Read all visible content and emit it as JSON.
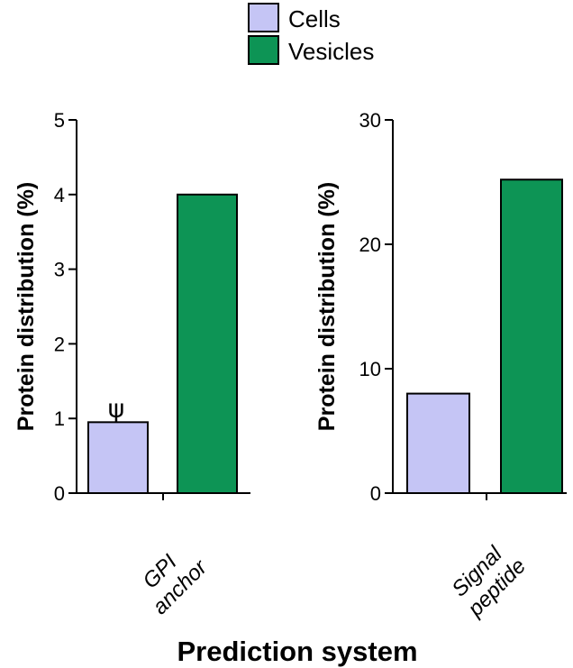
{
  "legend": [
    {
      "label": "Cells",
      "color": "#c5c5f5"
    },
    {
      "label": "Vesicles",
      "color": "#0d9455"
    }
  ],
  "xlabel": "Prediction system",
  "chart_data": [
    {
      "type": "bar",
      "categories": [
        "GPI anchor"
      ],
      "category_lines": [
        [
          "GPI",
          "anchor"
        ]
      ],
      "series": [
        {
          "name": "Cells",
          "values": [
            0.95
          ]
        },
        {
          "name": "Vesicles",
          "values": [
            4.0
          ]
        }
      ],
      "ylabel": "Protein distribution (%)",
      "ylim": [
        0,
        5
      ],
      "yticks": [
        0,
        1,
        2,
        3,
        4,
        5
      ],
      "annotations": [
        {
          "text": "ψ",
          "series": "Cells",
          "category": "GPI anchor"
        }
      ]
    },
    {
      "type": "bar",
      "categories": [
        "Signal peptide"
      ],
      "category_lines": [
        [
          "Signal",
          "peptide"
        ]
      ],
      "series": [
        {
          "name": "Cells",
          "values": [
            8.0
          ]
        },
        {
          "name": "Vesicles",
          "values": [
            25.2
          ]
        }
      ],
      "ylabel": "Protein distribution (%)",
      "ylim": [
        0,
        30
      ],
      "yticks": [
        0,
        10,
        20,
        30
      ],
      "annotations": []
    }
  ]
}
